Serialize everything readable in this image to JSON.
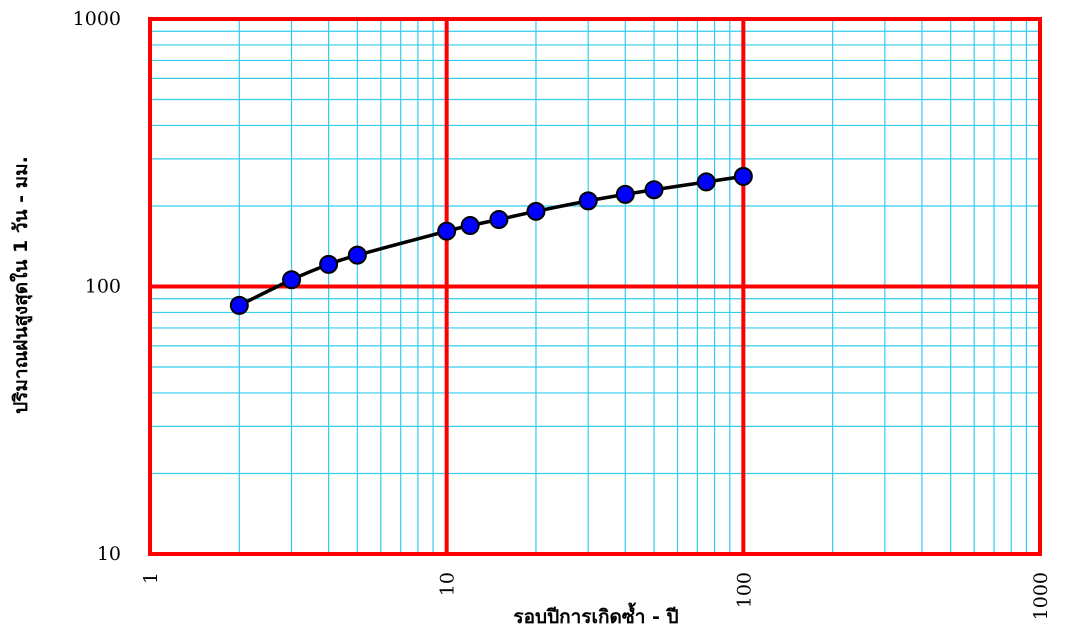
{
  "chart_data": {
    "type": "line",
    "xscale": "log",
    "yscale": "log",
    "xlim": [
      1,
      1000
    ],
    "ylim": [
      10,
      1000
    ],
    "xlabel": "รอบปีการเกิดซ้ำ - ปี",
    "ylabel": "ปริมาณฝนสูงสุดใน 1 วัน - มม.",
    "x_ticks": [
      "1",
      "10",
      "100",
      "1000"
    ],
    "y_ticks": [
      "10",
      "100",
      "1000"
    ],
    "grid": {
      "major": true,
      "minor": true,
      "major_color": "#ff0000",
      "minor_color": "#33ccee"
    },
    "series": [
      {
        "x": [
          2,
          3,
          4,
          5,
          10,
          12,
          15,
          20,
          30,
          40,
          50,
          75,
          100
        ],
        "y": [
          85,
          106,
          121,
          131,
          161,
          169,
          178,
          191,
          209,
          221,
          230,
          246,
          258
        ],
        "line_color": "#000000",
        "marker_fill": "#0000ff",
        "marker_edge": "#000000"
      }
    ]
  }
}
